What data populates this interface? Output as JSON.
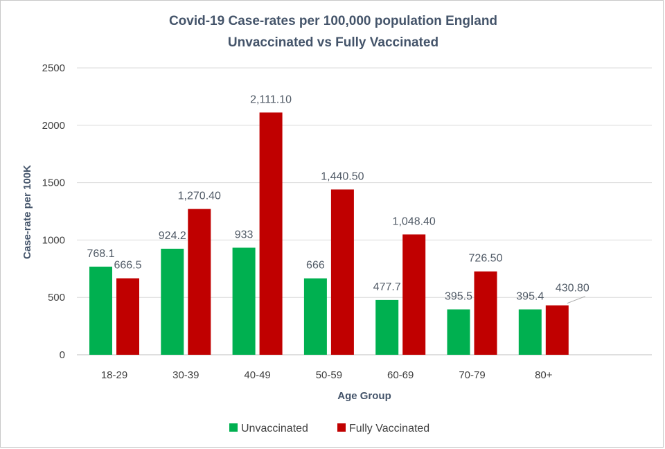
{
  "chart_data": {
    "type": "bar",
    "title": "Covid-19 Case-rates per 100,000 population England",
    "subtitle": "Unvaccinated vs Fully Vaccinated",
    "xlabel": "Age Group",
    "ylabel": "Case-rate per 100K",
    "ylim": [
      0,
      2500
    ],
    "yticks": [
      0,
      500,
      1000,
      1500,
      2000,
      2500
    ],
    "grid": true,
    "legend_position": "bottom",
    "categories": [
      "18-29",
      "30-39",
      "40-49",
      "50-59",
      "60-69",
      "70-79",
      "80+"
    ],
    "series": [
      {
        "name": "Unvaccinated",
        "color": "#00b050",
        "values": [
          768.1,
          924.2,
          933,
          666,
          477.7,
          395.5,
          395.4
        ],
        "labels": [
          "768.1",
          "924.2",
          "933",
          "666",
          "477.7",
          "395.5",
          "395.4"
        ]
      },
      {
        "name": "Fully Vaccinated",
        "color": "#c00000",
        "values": [
          666.5,
          1270.4,
          2111.1,
          1440.5,
          1048.4,
          726.5,
          430.8
        ],
        "labels": [
          "666.5",
          "1,270.40",
          "2,111.10",
          "1,440.50",
          "1,048.40",
          "726.50",
          "430.80"
        ]
      }
    ]
  }
}
